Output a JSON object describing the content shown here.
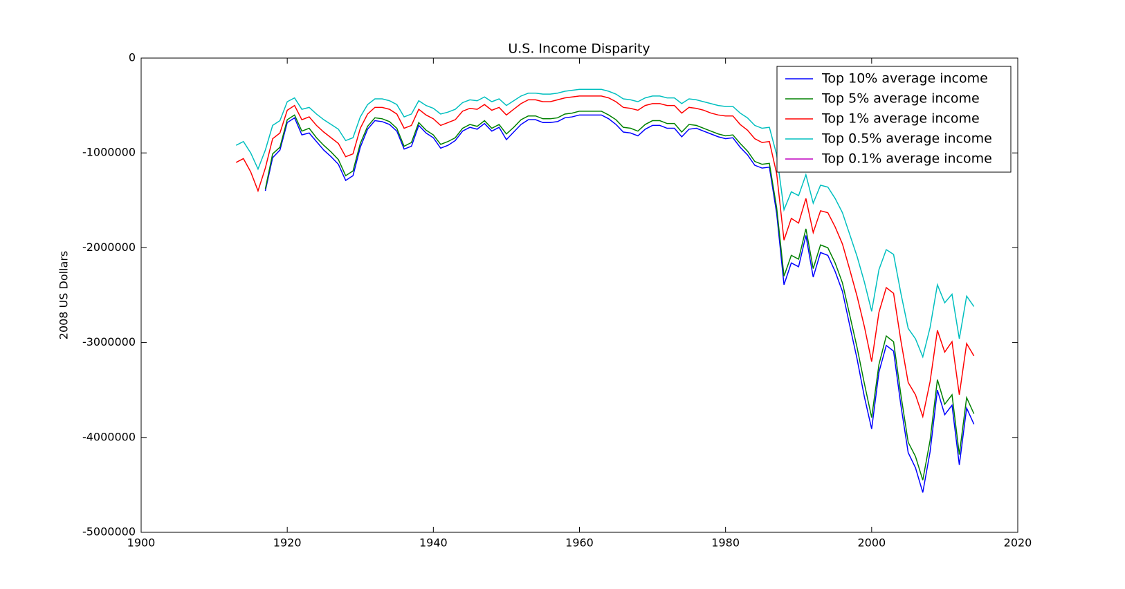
{
  "chart_data": {
    "type": "line",
    "title": "U.S. Income Disparity",
    "ylabel": "2008 US Dollars",
    "x": [
      1913,
      1914,
      1915,
      1916,
      1917,
      1918,
      1919,
      1920,
      1921,
      1922,
      1923,
      1924,
      1925,
      1926,
      1927,
      1928,
      1929,
      1930,
      1931,
      1932,
      1933,
      1934,
      1935,
      1936,
      1937,
      1938,
      1939,
      1940,
      1941,
      1942,
      1943,
      1944,
      1945,
      1946,
      1947,
      1948,
      1949,
      1950,
      1951,
      1952,
      1953,
      1954,
      1955,
      1956,
      1957,
      1958,
      1959,
      1960,
      1961,
      1962,
      1963,
      1964,
      1965,
      1966,
      1967,
      1968,
      1969,
      1970,
      1971,
      1972,
      1973,
      1974,
      1975,
      1976,
      1977,
      1978,
      1979,
      1980,
      1981,
      1982,
      1983,
      1984,
      1985,
      1986,
      1987,
      1988,
      1989,
      1990,
      1991,
      1992,
      1993,
      1994,
      1995,
      1996,
      1997,
      1998,
      1999,
      2000,
      2001,
      2002,
      2003,
      2004,
      2005,
      2006,
      2007,
      2008,
      2009,
      2010,
      2011,
      2012,
      2013,
      2014
    ],
    "series": [
      {
        "name": "Top 10% average income",
        "color": "#0000ff",
        "values": [
          null,
          null,
          null,
          null,
          -1400000,
          -1050000,
          -970000,
          -680000,
          -630000,
          -810000,
          -790000,
          -880000,
          -970000,
          -1040000,
          -1120000,
          -1290000,
          -1240000,
          -940000,
          -750000,
          -660000,
          -670000,
          -700000,
          -770000,
          -960000,
          -930000,
          -710000,
          -790000,
          -840000,
          -950000,
          -920000,
          -870000,
          -770000,
          -730000,
          -750000,
          -690000,
          -770000,
          -730000,
          -860000,
          -780000,
          -700000,
          -650000,
          -650000,
          -680000,
          -680000,
          -670000,
          -630000,
          -620000,
          -600000,
          -600000,
          -600000,
          -600000,
          -640000,
          -700000,
          -780000,
          -790000,
          -820000,
          -750000,
          -710000,
          -710000,
          -740000,
          -740000,
          -830000,
          -750000,
          -740000,
          -770000,
          -800000,
          -830000,
          -850000,
          -840000,
          -940000,
          -1020000,
          -1130000,
          -1160000,
          -1150000,
          -1640000,
          -2390000,
          -2160000,
          -2200000,
          -1870000,
          -2310000,
          -2050000,
          -2080000,
          -2250000,
          -2460000,
          -2820000,
          -3170000,
          -3570000,
          -3910000,
          -3310000,
          -3030000,
          -3090000,
          -3660000,
          -4160000,
          -4320000,
          -4580000,
          -4150000,
          -3500000,
          -3760000,
          -3660000,
          -4290000,
          -3690000,
          -3860000
        ]
      },
      {
        "name": "Top 5% average income",
        "color": "#008000",
        "values": [
          null,
          null,
          null,
          null,
          -1380000,
          -1010000,
          -940000,
          -650000,
          -600000,
          -770000,
          -740000,
          -840000,
          -920000,
          -990000,
          -1070000,
          -1240000,
          -1190000,
          -900000,
          -720000,
          -630000,
          -640000,
          -670000,
          -740000,
          -930000,
          -890000,
          -680000,
          -760000,
          -810000,
          -910000,
          -880000,
          -840000,
          -740000,
          -700000,
          -720000,
          -660000,
          -740000,
          -700000,
          -800000,
          -730000,
          -650000,
          -610000,
          -610000,
          -640000,
          -640000,
          -630000,
          -590000,
          -580000,
          -560000,
          -560000,
          -560000,
          -560000,
          -600000,
          -650000,
          -730000,
          -740000,
          -770000,
          -700000,
          -660000,
          -660000,
          -690000,
          -690000,
          -780000,
          -700000,
          -710000,
          -740000,
          -770000,
          -800000,
          -820000,
          -810000,
          -900000,
          -980000,
          -1090000,
          -1120000,
          -1110000,
          -1580000,
          -2300000,
          -2080000,
          -2120000,
          -1800000,
          -2220000,
          -1970000,
          -2000000,
          -2160000,
          -2370000,
          -2710000,
          -3050000,
          -3430000,
          -3790000,
          -3230000,
          -2930000,
          -2990000,
          -3550000,
          -4050000,
          -4200000,
          -4450000,
          -4030000,
          -3390000,
          -3650000,
          -3550000,
          -4180000,
          -3580000,
          -3750000
        ]
      },
      {
        "name": "Top 1% average income",
        "color": "#ff0000",
        "values": [
          -1100000,
          -1060000,
          -1200000,
          -1400000,
          -1160000,
          -850000,
          -790000,
          -550000,
          -500000,
          -650000,
          -620000,
          -710000,
          -780000,
          -840000,
          -900000,
          -1040000,
          -1010000,
          -740000,
          -590000,
          -520000,
          -520000,
          -540000,
          -590000,
          -740000,
          -710000,
          -540000,
          -600000,
          -640000,
          -710000,
          -680000,
          -650000,
          -560000,
          -530000,
          -540000,
          -490000,
          -550000,
          -520000,
          -600000,
          -540000,
          -480000,
          -440000,
          -440000,
          -460000,
          -460000,
          -440000,
          -420000,
          -410000,
          -400000,
          -400000,
          -400000,
          -400000,
          -420000,
          -460000,
          -520000,
          -530000,
          -550000,
          -500000,
          -480000,
          -480000,
          -500000,
          -500000,
          -580000,
          -520000,
          -530000,
          -550000,
          -580000,
          -600000,
          -610000,
          -610000,
          -700000,
          -760000,
          -850000,
          -890000,
          -880000,
          -1220000,
          -1920000,
          -1690000,
          -1740000,
          -1480000,
          -1840000,
          -1610000,
          -1630000,
          -1780000,
          -1960000,
          -2230000,
          -2510000,
          -2830000,
          -3200000,
          -2680000,
          -2420000,
          -2480000,
          -2980000,
          -3420000,
          -3550000,
          -3780000,
          -3410000,
          -2870000,
          -3100000,
          -2990000,
          -3550000,
          -3010000,
          -3140000
        ]
      },
      {
        "name": "Top 0.5% average income",
        "color": "#00bfbf",
        "values": [
          -920000,
          -880000,
          -1000000,
          -1170000,
          -970000,
          -710000,
          -660000,
          -460000,
          -420000,
          -540000,
          -520000,
          -590000,
          -650000,
          -700000,
          -750000,
          -870000,
          -840000,
          -620000,
          -490000,
          -430000,
          -430000,
          -450000,
          -490000,
          -620000,
          -590000,
          -450000,
          -500000,
          -530000,
          -590000,
          -570000,
          -540000,
          -470000,
          -440000,
          -450000,
          -410000,
          -460000,
          -430000,
          -500000,
          -450000,
          -400000,
          -370000,
          -370000,
          -380000,
          -380000,
          -370000,
          -350000,
          -340000,
          -330000,
          -330000,
          -330000,
          -330000,
          -350000,
          -380000,
          -430000,
          -440000,
          -460000,
          -420000,
          -400000,
          -400000,
          -420000,
          -420000,
          -480000,
          -430000,
          -440000,
          -460000,
          -480000,
          -500000,
          -510000,
          -510000,
          -580000,
          -630000,
          -710000,
          -740000,
          -730000,
          -1020000,
          -1600000,
          -1410000,
          -1450000,
          -1230000,
          -1530000,
          -1340000,
          -1360000,
          -1480000,
          -1630000,
          -1860000,
          -2090000,
          -2360000,
          -2670000,
          -2230000,
          -2020000,
          -2070000,
          -2480000,
          -2850000,
          -2960000,
          -3150000,
          -2840000,
          -2390000,
          -2580000,
          -2490000,
          -2960000,
          -2510000,
          -2620000
        ]
      },
      {
        "name": "Top 0.1% average income",
        "color": "#bf00bf",
        "values": [
          null,
          null,
          null,
          null,
          null,
          null,
          null,
          null,
          null,
          null,
          null,
          null,
          null,
          null,
          null,
          null,
          null,
          null,
          null,
          null,
          null,
          null,
          null,
          null,
          null,
          null,
          null,
          null,
          null,
          null,
          null,
          null,
          null,
          null,
          null,
          null,
          null,
          null,
          null,
          null,
          null,
          null,
          null,
          null,
          null,
          null,
          null,
          null,
          null,
          null,
          null,
          null,
          null,
          null,
          null,
          null,
          null,
          null,
          null,
          null,
          null,
          null,
          null,
          null,
          null,
          null,
          null,
          null,
          null,
          null,
          null,
          null,
          null,
          null,
          null,
          null,
          null,
          null,
          null,
          null,
          null,
          null,
          null,
          null,
          null,
          null,
          null,
          null,
          null,
          null,
          null,
          null,
          null,
          null,
          null,
          null,
          null,
          null,
          null,
          null,
          null,
          null
        ]
      }
    ],
    "xlim": [
      1900,
      2020
    ],
    "xticks": [
      1900,
      1920,
      1940,
      1960,
      1980,
      2000,
      2020
    ],
    "ylim": [
      -5000000,
      0
    ],
    "yticks": [
      -5000000,
      -4000000,
      -3000000,
      -2000000,
      -1000000,
      0
    ],
    "grid": false,
    "legend": "upper right"
  }
}
